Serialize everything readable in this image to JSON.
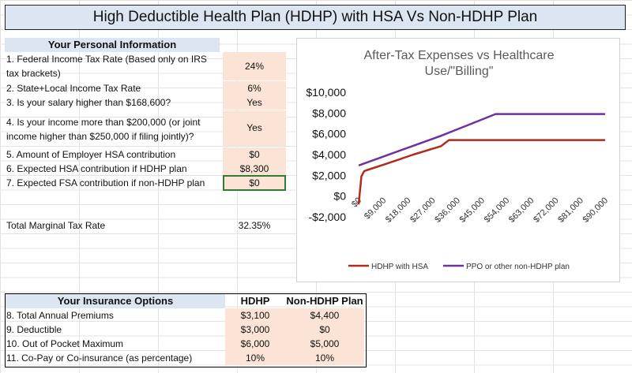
{
  "title": "High Deductible Health Plan (HDHP) with HSA Vs Non-HDHP Plan",
  "personal": {
    "header": "Your Personal Information",
    "rows": [
      {
        "label_1": "1. Federal Income Tax Rate (Based only on IRS",
        "label_2": "tax brackets)",
        "value": "24%"
      },
      {
        "label_1": "2. State+Local Income Tax Rate",
        "value": "6%"
      },
      {
        "label_1": "3. Is your salary higher than $168,600?",
        "value": "Yes"
      },
      {
        "label_1": "4. Is your income more than $200,000 (or joint",
        "label_2": "income higher than $250,000 if filing jointly)?",
        "value": "Yes"
      },
      {
        "label_1": "5. Amount of Employer HSA contribution",
        "value": "$0"
      },
      {
        "label_1": "6. Expected HSA contribution if HDHP plan",
        "value": "$8,300"
      },
      {
        "label_1": "7. Expected FSA contribution if non-HDHP plan",
        "value": "$0"
      }
    ],
    "total_label": "Total Marginal Tax Rate",
    "total_value": "32.35%"
  },
  "insurance": {
    "header": "Your Insurance Options",
    "col_hdhp": "HDHP",
    "col_non": "Non-HDHP Plan",
    "rows": [
      {
        "label": "8. Total Annual Premiums",
        "hdhp": "$3,100",
        "non": "$4,400"
      },
      {
        "label": "9. Deductible",
        "hdhp": "$3,000",
        "non": "$0"
      },
      {
        "label": "10. Out of Pocket Maximum",
        "hdhp": "$6,000",
        "non": "$5,000"
      },
      {
        "label": "11. Co-Pay or Co-insurance (as percentage)",
        "hdhp": "10%",
        "non": "10%"
      }
    ]
  },
  "chart_data": {
    "type": "line",
    "title": "After-Tax Expenses vs Healthcare Use/\"Billing\"",
    "title_line1": "After-Tax Expenses vs Healthcare",
    "title_line2": "Use/\"Billing\"",
    "ylim": [
      -2000,
      10000
    ],
    "xlim": [
      0,
      90000
    ],
    "y_ticks": [
      {
        "value": 10000,
        "label": "$10,000"
      },
      {
        "value": 8000,
        "label": "$8,000"
      },
      {
        "value": 6000,
        "label": "$6,000"
      },
      {
        "value": 4000,
        "label": "$4,000"
      },
      {
        "value": 2000,
        "label": "$2,000"
      },
      {
        "value": 0,
        "label": "$0"
      },
      {
        "value": -2000,
        "label": "-$2,000"
      }
    ],
    "x_ticks": [
      {
        "value": 0,
        "label": "$0"
      },
      {
        "value": 9000,
        "label": "$9,000"
      },
      {
        "value": 18000,
        "label": "$18,000"
      },
      {
        "value": 27000,
        "label": "$27,000"
      },
      {
        "value": 36000,
        "label": "$36,000"
      },
      {
        "value": 45000,
        "label": "$45,000"
      },
      {
        "value": 54000,
        "label": "$54,000"
      },
      {
        "value": 63000,
        "label": "$63,000"
      },
      {
        "value": 72000,
        "label": "$72,000"
      },
      {
        "value": 81000,
        "label": "$81,000"
      },
      {
        "value": 90000,
        "label": "$90,000"
      }
    ],
    "series": [
      {
        "name": "HDHP with HSA",
        "color": "#b22a1a",
        "x": [
          0,
          1000,
          2000,
          3000,
          10000,
          20000,
          30000,
          33000,
          90000
        ],
        "y": [
          -800,
          1900,
          2400,
          2500,
          3100,
          4000,
          4800,
          5400,
          5400
        ]
      },
      {
        "name": "PPO or other non-HDHP plan",
        "color": "#7030a0",
        "x": [
          0,
          10000,
          20000,
          30000,
          40000,
          50000,
          90000
        ],
        "y": [
          2950,
          3900,
          4850,
          5800,
          6850,
          7900,
          7900
        ]
      }
    ]
  }
}
